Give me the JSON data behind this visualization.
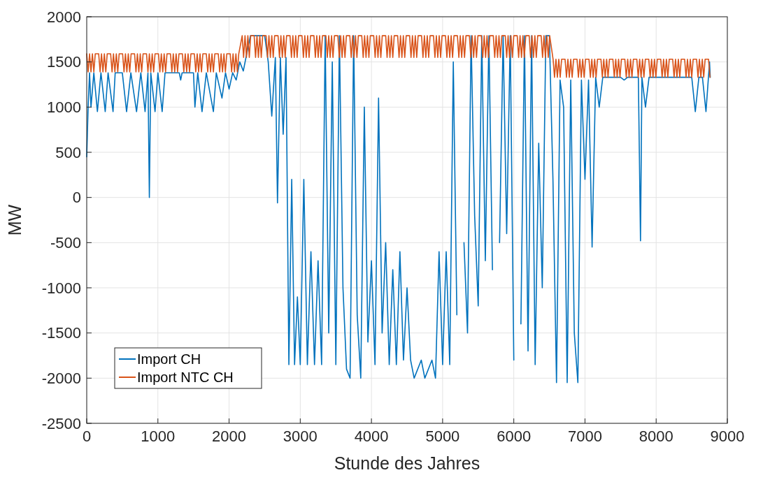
{
  "chart_data": {
    "type": "line",
    "xlabel": "Stunde des Jahres",
    "ylabel": "MW",
    "xlim": [
      0,
      9000
    ],
    "ylim": [
      -2500,
      2000
    ],
    "xticks": [
      0,
      1000,
      2000,
      3000,
      4000,
      5000,
      6000,
      7000,
      8000,
      9000
    ],
    "yticks": [
      -2500,
      -2000,
      -1500,
      -1000,
      -500,
      0,
      500,
      1000,
      1500,
      2000
    ],
    "grid": true,
    "legend": "bottom left",
    "series": [
      {
        "name": "Import CH",
        "color": "#0072bd",
        "x": [
          0,
          20,
          40,
          60,
          100,
          150,
          200,
          260,
          300,
          370,
          400,
          500,
          560,
          620,
          700,
          760,
          820,
          860,
          880,
          900,
          960,
          1000,
          1060,
          1100,
          1300,
          1320,
          1340,
          1500,
          1520,
          1560,
          1620,
          1680,
          1780,
          1820,
          1900,
          1950,
          2000,
          2050,
          2100,
          2150,
          2200,
          2250,
          2300,
          2500,
          2550,
          2600,
          2650,
          2680,
          2720,
          2760,
          2800,
          2840,
          2880,
          2920,
          2960,
          3000,
          3050,
          3100,
          3150,
          3200,
          3250,
          3300,
          3350,
          3400,
          3450,
          3500,
          3550,
          3600,
          3650,
          3700,
          3750,
          3800,
          3850,
          3900,
          3950,
          4000,
          4050,
          4100,
          4150,
          4200,
          4250,
          4300,
          4350,
          4400,
          4450,
          4500,
          4550,
          4600,
          4700,
          4750,
          4850,
          4900,
          4950,
          5000,
          5050,
          5100,
          5150,
          5200,
          5250,
          5300,
          5350,
          5400,
          5450,
          5500,
          5550,
          5600,
          5650,
          5700,
          5750,
          5800,
          5850,
          5900,
          5950,
          6000,
          6050,
          6100,
          6150,
          6200,
          6250,
          6300,
          6350,
          6400,
          6450,
          6500,
          6550,
          6600,
          6650,
          6700,
          6750,
          6800,
          6850,
          6900,
          6950,
          7000,
          7050,
          7100,
          7150,
          7200,
          7250,
          7500,
          7550,
          7600,
          7750,
          7780,
          7800,
          7850,
          7900,
          8500,
          8550,
          8600,
          8650,
          8700,
          8750,
          8760
        ],
        "values": [
          450,
          1000,
          1380,
          1000,
          1380,
          950,
          1380,
          950,
          1380,
          950,
          1380,
          1380,
          950,
          1380,
          950,
          1380,
          950,
          1380,
          0,
          1380,
          950,
          1380,
          950,
          1380,
          1380,
          1300,
          1380,
          1380,
          1000,
          1380,
          950,
          1380,
          950,
          1380,
          1100,
          1380,
          1200,
          1380,
          1300,
          1500,
          1400,
          1600,
          1790,
          1790,
          1500,
          900,
          1550,
          -60,
          1550,
          700,
          1550,
          -1850,
          200,
          -1850,
          -1100,
          -1850,
          200,
          -1850,
          -600,
          -1850,
          -700,
          -1850,
          1790,
          -1500,
          1500,
          -1850,
          1790,
          -1000,
          -1900,
          -2000,
          1790,
          -1300,
          -2000,
          1000,
          -1600,
          -700,
          -1850,
          1100,
          -1500,
          -500,
          -1850,
          -800,
          -1850,
          -600,
          -1800,
          -1000,
          -1800,
          -2000,
          -1800,
          -2000,
          -1800,
          -2000,
          -600,
          -1850,
          -600,
          -1850,
          1500,
          -1300,
          null,
          -500,
          -1500,
          1790,
          -200,
          -1200,
          1790,
          -700,
          1790,
          -800,
          null,
          -500,
          1790,
          -400,
          1790,
          -1800,
          null,
          -1400,
          1790,
          -1700,
          1790,
          -1850,
          600,
          -1000,
          1790,
          1790,
          200,
          -2050,
          1300,
          1000,
          -2050,
          1300,
          -1500,
          -2050,
          1300,
          200,
          1300,
          -550,
          1330,
          1000,
          1330,
          1330,
          1300,
          1330,
          1330,
          -480,
          1330,
          1000,
          1330,
          1330,
          950,
          1330,
          1330,
          950,
          1500,
          1330
        ]
      },
      {
        "name": "Import NTC CH",
        "color": "#d95319",
        "x": [
          0,
          20,
          40,
          60,
          80,
          100,
          120,
          168,
          188,
          208,
          228,
          248,
          268,
          288,
          336,
          356,
          376,
          396,
          416,
          436,
          456,
          504,
          524,
          544,
          564,
          584,
          604,
          624,
          672,
          692,
          712,
          732,
          752,
          772,
          792,
          840,
          860,
          880,
          900,
          920,
          940,
          960,
          1008,
          1028,
          1048,
          1068,
          1088,
          1108,
          1128,
          1176,
          1196,
          1216,
          1236,
          1256,
          1276,
          1296,
          1344,
          1364,
          1384,
          1404,
          1424,
          1444,
          1464,
          1512,
          1532,
          1552,
          1572,
          1592,
          1612,
          1632,
          1680,
          1700,
          1720,
          1740,
          1760,
          1780,
          1800,
          1848,
          1868,
          1888,
          1908,
          1928,
          1948,
          1968,
          2016,
          2036,
          2056,
          2076,
          2096,
          2116,
          2136,
          2184,
          2204,
          2224,
          2244,
          2264,
          2284,
          2304,
          2352,
          2372,
          2392,
          2412,
          2432,
          2452,
          2472,
          2520,
          2540,
          2560,
          2580,
          2600,
          2620,
          2640,
          2688,
          2708,
          2728,
          2748,
          2768,
          2788,
          2808,
          2856,
          2876,
          2896,
          2916,
          2936,
          2956,
          2976,
          3024,
          3044,
          3064,
          3084,
          3104,
          3124,
          3144,
          3192,
          3212,
          3232,
          3252,
          3272,
          3292,
          3312,
          3360,
          3380,
          3400,
          3420,
          3440,
          3460,
          3480,
          3528,
          3548,
          3568,
          3588,
          3608,
          3628,
          3648,
          3696,
          3716,
          3736,
          3756,
          3776,
          3796,
          3816,
          3864,
          3884,
          3904,
          3924,
          3944,
          3964,
          3984,
          4032,
          4052,
          4072,
          4092,
          4112,
          4132,
          4152,
          4200,
          4220,
          4240,
          4260,
          4280,
          4300,
          4320,
          4368,
          4388,
          4408,
          4428,
          4448,
          4468,
          4488,
          4536,
          4556,
          4576,
          4596,
          4616,
          4636,
          4656,
          4704,
          4724,
          4744,
          4764,
          4784,
          4804,
          4824,
          4872,
          4892,
          4912,
          4932,
          4952,
          4972,
          4992,
          5040,
          5060,
          5080,
          5100,
          5120,
          5140,
          5160,
          5208,
          5228,
          5248,
          5268,
          5288,
          5308,
          5328,
          5376,
          5396,
          5416,
          5436,
          5456,
          5476,
          5496,
          5544,
          5564,
          5584,
          5604,
          5624,
          5644,
          5664,
          5712,
          5732,
          5752,
          5772,
          5792,
          5812,
          5832,
          5880,
          5900,
          5920,
          5940,
          5960,
          5980,
          6000,
          6048,
          6068,
          6088,
          6108,
          6128,
          6148,
          6168,
          6216,
          6236,
          6256,
          6276,
          6296,
          6316,
          6336,
          6384,
          6404,
          6424,
          6444,
          6464,
          6484,
          6504,
          6552,
          6572,
          6592,
          6612,
          6632,
          6652,
          6672,
          6720,
          6740,
          6760,
          6780,
          6800,
          6820,
          6840,
          6888,
          6908,
          6928,
          6948,
          6968,
          6988,
          7008,
          7056,
          7076,
          7096,
          7116,
          7136,
          7156,
          7176,
          7224,
          7244,
          7264,
          7284,
          7304,
          7324,
          7344,
          7392,
          7412,
          7432,
          7452,
          7472,
          7492,
          7512,
          7560,
          7580,
          7600,
          7620,
          7640,
          7660,
          7680,
          7728,
          7748,
          7768,
          7788,
          7808,
          7828,
          7848,
          7896,
          7916,
          7936,
          7956,
          7976,
          7996,
          8016,
          8064,
          8084,
          8104,
          8124,
          8144,
          8164,
          8184,
          8232,
          8252,
          8272,
          8292,
          8312,
          8332,
          8352,
          8400,
          8420,
          8440,
          8460,
          8480,
          8500,
          8520,
          8568,
          8588,
          8608,
          8628,
          8648,
          8668,
          8688,
          8736,
          8756
        ],
        "values": [
          1590,
          1390,
          1590,
          1390,
          1590,
          1390,
          1590,
          1590,
          1390,
          1590,
          1390,
          1590,
          1390,
          1590,
          1590,
          1390,
          1590,
          1390,
          1590,
          1390,
          1590,
          1590,
          1390,
          1590,
          1390,
          1590,
          1390,
          1590,
          1590,
          1390,
          1590,
          1390,
          1590,
          1390,
          1590,
          1590,
          1390,
          1590,
          1390,
          1590,
          1390,
          1590,
          1590,
          1390,
          1590,
          1390,
          1590,
          1390,
          1590,
          1590,
          1390,
          1590,
          1390,
          1590,
          1390,
          1590,
          1590,
          1390,
          1590,
          1390,
          1590,
          1390,
          1590,
          1590,
          1390,
          1590,
          1390,
          1590,
          1390,
          1590,
          1590,
          1390,
          1590,
          1390,
          1590,
          1390,
          1590,
          1590,
          1390,
          1590,
          1390,
          1590,
          1390,
          1590,
          1590,
          1390,
          1590,
          1390,
          1590,
          1390,
          1590,
          1790,
          1550,
          1790,
          1550,
          1790,
          1550,
          1790,
          1790,
          1550,
          1790,
          1550,
          1790,
          1550,
          1790,
          1790,
          1550,
          1790,
          1550,
          1790,
          1550,
          1790,
          1790,
          1550,
          1790,
          1550,
          1790,
          1550,
          1790,
          1790,
          1550,
          1790,
          1550,
          1790,
          1550,
          1790,
          1790,
          1550,
          1790,
          1550,
          1790,
          1550,
          1790,
          1790,
          1550,
          1790,
          1550,
          1790,
          1550,
          1790,
          1790,
          1550,
          1790,
          1550,
          1790,
          1550,
          1790,
          1790,
          1550,
          1790,
          1550,
          1790,
          1550,
          1790,
          1790,
          1550,
          1790,
          1550,
          1790,
          1550,
          1790,
          1790,
          1550,
          1790,
          1550,
          1790,
          1550,
          1790,
          1790,
          1550,
          1790,
          1550,
          1790,
          1550,
          1790,
          1790,
          1550,
          1790,
          1550,
          1790,
          1550,
          1790,
          1790,
          1550,
          1790,
          1550,
          1790,
          1550,
          1790,
          1790,
          1550,
          1790,
          1550,
          1790,
          1550,
          1790,
          1790,
          1550,
          1790,
          1550,
          1790,
          1550,
          1790,
          1790,
          1550,
          1790,
          1550,
          1790,
          1550,
          1790,
          1790,
          1550,
          1790,
          1550,
          1790,
          1550,
          1790,
          1790,
          1550,
          1790,
          1550,
          1790,
          1550,
          1790,
          1790,
          1550,
          1790,
          1550,
          1790,
          1550,
          1790,
          1790,
          1550,
          1790,
          1550,
          1790,
          1550,
          1790,
          1790,
          1550,
          1790,
          1550,
          1790,
          1550,
          1790,
          1790,
          1550,
          1790,
          1550,
          1790,
          1550,
          1790,
          1790,
          1550,
          1790,
          1550,
          1790,
          1550,
          1790,
          1790,
          1550,
          1790,
          1550,
          1790,
          1550,
          1790,
          1790,
          1550,
          1790,
          1550,
          1790,
          1550,
          1790,
          1530,
          1330,
          1530,
          1330,
          1530,
          1330,
          1530,
          1530,
          1330,
          1530,
          1330,
          1530,
          1330,
          1530,
          1530,
          1330,
          1530,
          1330,
          1530,
          1330,
          1530,
          1530,
          1330,
          1530,
          1330,
          1530,
          1330,
          1530,
          1530,
          1330,
          1530,
          1330,
          1530,
          1330,
          1530,
          1530,
          1330,
          1530,
          1330,
          1530,
          1330,
          1530,
          1530,
          1330,
          1530,
          1330,
          1530,
          1330,
          1530,
          1530,
          1330,
          1530,
          1330,
          1530,
          1330,
          1530,
          1530,
          1330,
          1530,
          1330,
          1530,
          1330,
          1530,
          1530,
          1330,
          1530,
          1330,
          1530,
          1330,
          1530,
          1530,
          1330,
          1530,
          1330,
          1530,
          1330,
          1530,
          1530,
          1330,
          1530,
          1330,
          1530,
          1330,
          1530,
          1530,
          1330,
          1530,
          1330,
          1530,
          1330,
          1530,
          1530,
          1330
        ]
      }
    ]
  }
}
